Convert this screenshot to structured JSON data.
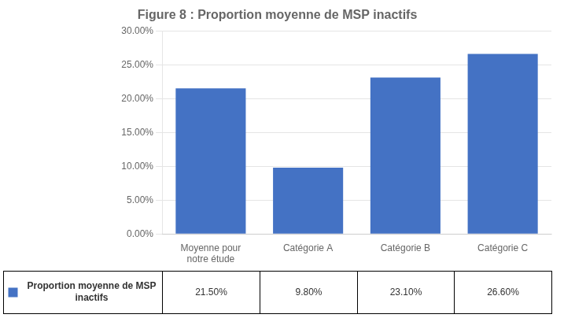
{
  "chart_data": {
    "type": "bar",
    "title": "Figure 8 : Proportion moyenne de MSP inactifs",
    "categories": [
      "Moyenne pour\nnotre étude",
      "Catégorie A",
      "Catégorie B",
      "Catégorie C"
    ],
    "series": [
      {
        "name": "Proportion moyenne de MSP\ninactifs",
        "color": "#4472C4",
        "values": [
          0.215,
          0.098,
          0.231,
          0.266
        ],
        "value_labels": [
          "21.50%",
          "9.80%",
          "23.10%",
          "26.60%"
        ]
      }
    ],
    "data_labels": true,
    "ylim": [
      0,
      0.3
    ],
    "yticks": [
      {
        "value": 0.0,
        "label": "0.00%"
      },
      {
        "value": 0.05,
        "label": "5.00%"
      },
      {
        "value": 0.1,
        "label": "10.00%"
      },
      {
        "value": 0.15,
        "label": "15.00%"
      },
      {
        "value": 0.2,
        "label": "20.00%"
      },
      {
        "value": 0.25,
        "label": "25.00%"
      },
      {
        "value": 0.3,
        "label": "30.00%"
      }
    ],
    "grid": true
  }
}
